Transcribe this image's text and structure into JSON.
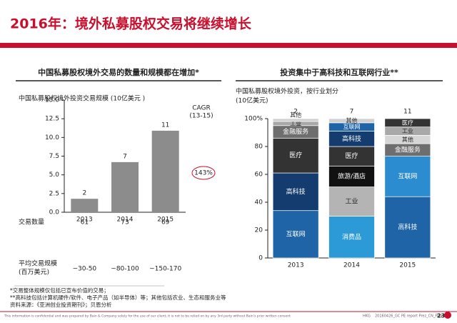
{
  "header": {
    "title": "2016年：境外私募股权交易将继续增长"
  },
  "chart_data": [
    {
      "type": "bar",
      "heading": "中国私募股权境外交易的数量和规模都在增加*",
      "title": "中国私募股权境外投资交易规模 (10亿美元 )",
      "categories": [
        "2013",
        "2014",
        "2015"
      ],
      "values": [
        1.8,
        6.7,
        10.9
      ],
      "value_labels": [
        "2",
        "7",
        "11"
      ],
      "color": "#8c8c8c",
      "ylim": [
        0,
        15
      ],
      "yticks": [
        {
          "value": 0,
          "label": "0.0"
        },
        {
          "value": 2.5,
          "label": "2.5"
        },
        {
          "value": 5,
          "label": "5.0"
        },
        {
          "value": 7.5,
          "label": "7.5"
        },
        {
          "value": 10,
          "label": "10.0"
        },
        {
          "value": 12.5,
          "label": "12.5"
        },
        {
          "value": 15,
          "label": "15.0"
        }
      ],
      "cagr_label": [
        "CAGR",
        "(13-15)"
      ],
      "cagr_value": "143%",
      "rows": [
        {
          "label": [
            "交易数量"
          ],
          "values": [
            61,
            73,
            69
          ]
        },
        {
          "label": [
            "平均交易规模",
            "(百万美元)"
          ],
          "values": [
            "~30-50",
            "~80-100",
            "~150-170"
          ]
        }
      ]
    },
    {
      "type": "stacked_bar",
      "heading": "投资集中于高科技和互联网行业**",
      "title": [
        "中国私募股权境外投资，按行业划分",
        "(10亿美元)"
      ],
      "categories": [
        "2013",
        "2014",
        "2015"
      ],
      "totals": [
        2,
        7,
        11
      ],
      "stacks": [
        [
          {
            "name": "互联网",
            "color": "#1e64a6",
            "value": 34
          },
          {
            "name": "高科技",
            "color": "#143c6e",
            "value": 27
          },
          {
            "name": "医疗",
            "color": "#333333",
            "value": 25
          },
          {
            "name": "金融服务",
            "color": "#6e6e6e",
            "value": 9
          },
          {
            "name": "工业",
            "color": "#a8a8a8",
            "value": 3
          },
          {
            "name": "其他",
            "color": "#d0d0d0",
            "value": 2
          }
        ],
        [
          {
            "name": "消费品",
            "color": "#2b9ad6",
            "value": 30
          },
          {
            "name": "工业",
            "color": "#b4b4b4",
            "value": 21
          },
          {
            "name": "旅游/酒店",
            "color": "#111111",
            "value": 15
          },
          {
            "name": "医疗",
            "color": "#333333",
            "value": 14
          },
          {
            "name": "高科技",
            "color": "#143c6e",
            "value": 11
          },
          {
            "name": "互联网",
            "color": "#1e64a6",
            "value": 6
          },
          {
            "name": "其他",
            "color": "#d0d0d0",
            "value": 3
          }
        ],
        [
          {
            "name": "高科技",
            "color": "#1e64a6",
            "value": 44
          },
          {
            "name": "互联网",
            "color": "#2b8ccf",
            "value": 29
          },
          {
            "name": "金融服务",
            "color": "#6e6e6e",
            "value": 9
          },
          {
            "name": "其他",
            "color": "#d6d6d6",
            "value": 6
          },
          {
            "name": "工业",
            "color": "#a8a8a8",
            "value": 6
          },
          {
            "name": "医疗",
            "color": "#333333",
            "value": 6
          }
        ]
      ],
      "ylim": [
        0,
        100
      ],
      "yticks": [
        0,
        20,
        40,
        60,
        80,
        {
          "value": 100,
          "label": "100%"
        }
      ]
    }
  ],
  "footnotes": [
    "*交易整体规模仅包括已宣布价值的交易；",
    "**高科技包括计算机硬件/软件、电子产品（如半导体）等；其他包括农业、生态和服务业等",
    "资料来源：《亚洲创业投资期刊》；贝恩分析"
  ],
  "footer": {
    "disclaimer": "This information is confidential and was prepared by Bain & Company solely for the use of our client; it is not to be relied on by any 3rd party without Bain's prior written consent",
    "code": "HKG",
    "file": "20160426_GC PE report Prez_CN_Final",
    "page": 23
  }
}
